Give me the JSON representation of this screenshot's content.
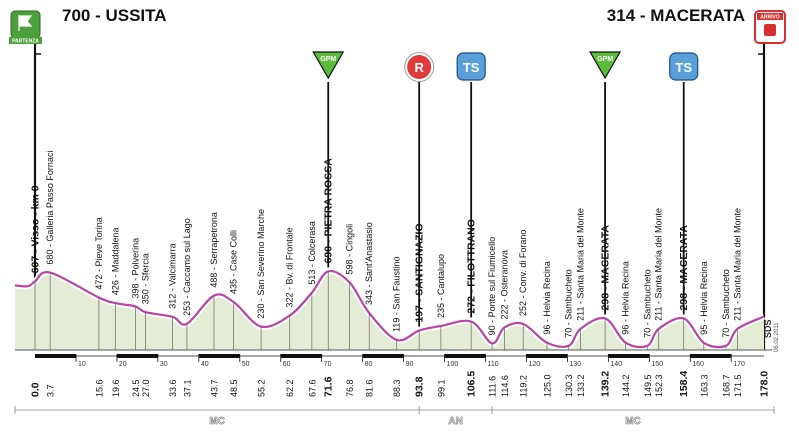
{
  "header": {
    "start": "700 - USSITA",
    "finish": "314 - MACERATA",
    "start_badge": "PARTENZA",
    "finish_badge": "ARRIVO"
  },
  "credit": "SDS",
  "credit_date": "06.02.2011",
  "colors": {
    "profile_fill": "#e5ecd6",
    "profile_line": "#b845a6",
    "gpm": "#5cbb3c",
    "sprint_r": "#e03a3a",
    "ts": "#5a9fd8",
    "dark": "#222222"
  },
  "markers": [
    {
      "type": "gpm",
      "label": "GPM",
      "km": 71.6
    },
    {
      "type": "r",
      "label": "R",
      "km": 93.8
    },
    {
      "type": "ts",
      "label": "TS",
      "km": 106.5
    },
    {
      "type": "gpm",
      "label": "GPM",
      "km": 139.2
    },
    {
      "type": "ts",
      "label": "TS",
      "km": 158.4
    }
  ],
  "chart_data": {
    "type": "area",
    "x_unit": "km",
    "y_unit": "m",
    "profile": [
      {
        "km": 0,
        "alt": 607
      },
      {
        "km": 3.7,
        "alt": 680
      },
      {
        "km": 15.6,
        "alt": 472
      },
      {
        "km": 19.6,
        "alt": 426
      },
      {
        "km": 24.5,
        "alt": 398
      },
      {
        "km": 27.0,
        "alt": 350
      },
      {
        "km": 33.6,
        "alt": 312
      },
      {
        "km": 37.1,
        "alt": 253
      },
      {
        "km": 43.7,
        "alt": 488
      },
      {
        "km": 48.5,
        "alt": 435
      },
      {
        "km": 55.2,
        "alt": 230
      },
      {
        "km": 62.2,
        "alt": 322
      },
      {
        "km": 67.6,
        "alt": 513
      },
      {
        "km": 71.6,
        "alt": 690
      },
      {
        "km": 76.8,
        "alt": 598
      },
      {
        "km": 81.6,
        "alt": 343
      },
      {
        "km": 88.3,
        "alt": 119
      },
      {
        "km": 93.8,
        "alt": 197
      },
      {
        "km": 99.1,
        "alt": 235
      },
      {
        "km": 106.5,
        "alt": 272
      },
      {
        "km": 111.6,
        "alt": 90
      },
      {
        "km": 114.6,
        "alt": 222
      },
      {
        "km": 119.2,
        "alt": 252
      },
      {
        "km": 125.0,
        "alt": 96
      },
      {
        "km": 130.3,
        "alt": 70
      },
      {
        "km": 133.2,
        "alt": 211
      },
      {
        "km": 139.2,
        "alt": 298
      },
      {
        "km": 144.2,
        "alt": 96
      },
      {
        "km": 149.5,
        "alt": 70
      },
      {
        "km": 152.3,
        "alt": 211
      },
      {
        "km": 158.4,
        "alt": 298
      },
      {
        "km": 163.3,
        "alt": 95
      },
      {
        "km": 168.7,
        "alt": 70
      },
      {
        "km": 171.5,
        "alt": 211
      },
      {
        "km": 178.0,
        "alt": 314
      }
    ],
    "places": [
      {
        "km": 0,
        "text": "607 - Visso - km 0",
        "bold": true
      },
      {
        "km": 3.7,
        "text": "680 - Galleria Passo Fornaci"
      },
      {
        "km": 15.6,
        "text": "472 - Pieve Torina"
      },
      {
        "km": 19.6,
        "text": "426 - Maddalena"
      },
      {
        "km": 24.5,
        "text": "398 - Polverina"
      },
      {
        "km": 27.0,
        "text": "350 - Sfercia"
      },
      {
        "km": 33.6,
        "text": "312 - Valcimarra"
      },
      {
        "km": 37.1,
        "text": "253 - Caccamo sul Lago"
      },
      {
        "km": 43.7,
        "text": "488 - Serrapetrona"
      },
      {
        "km": 48.5,
        "text": "435 - Case Colli"
      },
      {
        "km": 55.2,
        "text": "230 - San Severino Marche"
      },
      {
        "km": 62.2,
        "text": "322 - Bv. di Frontale"
      },
      {
        "km": 67.6,
        "text": "513 - Colcerasa"
      },
      {
        "km": 71.6,
        "text": "690 - PIETRA ROSSA",
        "bold": true
      },
      {
        "km": 76.8,
        "text": "598 - Cingoli"
      },
      {
        "km": 81.6,
        "text": "343 - Sant'Anastasio"
      },
      {
        "km": 88.3,
        "text": "119 - San Faustino"
      },
      {
        "km": 93.8,
        "text": "197 - SANTIGNAZIO",
        "bold": true
      },
      {
        "km": 99.1,
        "text": "235 - Cantalupo"
      },
      {
        "km": 106.5,
        "text": "272 - FILOTTRANO",
        "bold": true
      },
      {
        "km": 111.6,
        "text": "90 - Ponte sul Fiumicello"
      },
      {
        "km": 114.6,
        "text": "222 - Osteranova"
      },
      {
        "km": 119.2,
        "text": "252 - Conv. di Forano"
      },
      {
        "km": 125.0,
        "text": "96 - Helvia Recina"
      },
      {
        "km": 130.3,
        "text": "70 - Sambucheto"
      },
      {
        "km": 133.2,
        "text": "211 - Santa Maria del Monte"
      },
      {
        "km": 139.2,
        "text": "298 - MACERATA",
        "bold": true
      },
      {
        "km": 144.2,
        "text": "96 - Helvia Recina"
      },
      {
        "km": 149.5,
        "text": "70 - Sambucheto"
      },
      {
        "km": 152.3,
        "text": "211 - Santa Maria del Monte"
      },
      {
        "km": 158.4,
        "text": "298 - MACERATA",
        "bold": true
      },
      {
        "km": 163.3,
        "text": "95 - Helvia Recina"
      },
      {
        "km": 168.7,
        "text": "70 - Sambucheto"
      },
      {
        "km": 171.5,
        "text": "211 - Santa Maria del Monte"
      }
    ],
    "km_labels": [
      {
        "km": 0,
        "text": "0.0",
        "bold": true
      },
      {
        "km": 3.7,
        "text": "3.7"
      },
      {
        "km": 15.6,
        "text": "15.6"
      },
      {
        "km": 19.6,
        "text": "19.6"
      },
      {
        "km": 24.5,
        "text": "24.5"
      },
      {
        "km": 27.0,
        "text": "27.0"
      },
      {
        "km": 33.6,
        "text": "33.6"
      },
      {
        "km": 37.1,
        "text": "37.1"
      },
      {
        "km": 43.7,
        "text": "43.7"
      },
      {
        "km": 48.5,
        "text": "48.5"
      },
      {
        "km": 55.2,
        "text": "55.2"
      },
      {
        "km": 62.2,
        "text": "62.2"
      },
      {
        "km": 67.6,
        "text": "67.6"
      },
      {
        "km": 71.6,
        "text": "71.6",
        "bold": true
      },
      {
        "km": 76.8,
        "text": "76.8"
      },
      {
        "km": 81.6,
        "text": "81.6"
      },
      {
        "km": 88.3,
        "text": "88.3"
      },
      {
        "km": 93.8,
        "text": "93.8",
        "bold": true
      },
      {
        "km": 99.1,
        "text": "99.1"
      },
      {
        "km": 106.5,
        "text": "106.5",
        "bold": true
      },
      {
        "km": 111.6,
        "text": "111.6"
      },
      {
        "km": 114.6,
        "text": "114.6"
      },
      {
        "km": 119.2,
        "text": "119.2"
      },
      {
        "km": 125.0,
        "text": "125.0"
      },
      {
        "km": 130.3,
        "text": "130.3"
      },
      {
        "km": 133.2,
        "text": "133.2"
      },
      {
        "km": 139.2,
        "text": "139.2",
        "bold": true
      },
      {
        "km": 144.2,
        "text": "144.2"
      },
      {
        "km": 149.5,
        "text": "149.5"
      },
      {
        "km": 152.3,
        "text": "152.3"
      },
      {
        "km": 158.4,
        "text": "158.4",
        "bold": true
      },
      {
        "km": 163.3,
        "text": "163.3"
      },
      {
        "km": 168.7,
        "text": "168.7"
      },
      {
        "km": 171.5,
        "text": "171.5"
      },
      {
        "km": 178.0,
        "text": "178.0",
        "bold": true
      }
    ],
    "scale_ticks": [
      10,
      20,
      30,
      40,
      50,
      60,
      70,
      80,
      90,
      100,
      110,
      120,
      130,
      140,
      150,
      160,
      170
    ],
    "provinces": [
      {
        "label": "MC",
        "from": 0,
        "to": 93.8
      },
      {
        "label": "AN",
        "from": 93.8,
        "to": 111.6
      },
      {
        "label": "MC",
        "from": 111.6,
        "to": 178.0
      }
    ]
  }
}
